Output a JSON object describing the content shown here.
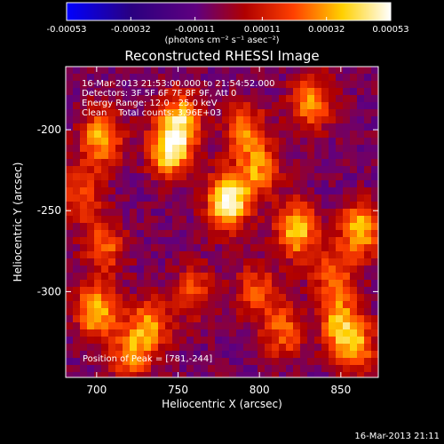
{
  "chart_data": {
    "type": "heatmap",
    "title": "Reconstructed RHESSI Image",
    "xlabel": "Heliocentric X (arcsec)",
    "ylabel": "Heliocentric Y (arcsec)",
    "xlim": [
      681,
      873
    ],
    "ylim": [
      -353,
      -161
    ],
    "x_ticks": [
      700,
      750,
      800,
      850
    ],
    "y_ticks": [
      -200,
      -250,
      -300
    ],
    "x_tick_labels": [
      "700",
      "750",
      "800",
      "850"
    ],
    "y_tick_labels": [
      "-200",
      "-250",
      "-300"
    ],
    "colorbar": {
      "min": -0.00053,
      "max": 0.00053,
      "ticks": [
        -0.00053,
        -0.00032,
        -0.00011,
        0.00011,
        0.00032,
        0.00053
      ],
      "tick_labels": [
        "-0.00053",
        "-0.00032",
        "-0.00011",
        "0.00011",
        "0.00032",
        "0.00053"
      ],
      "units_label": "(photons cm⁻² s⁻¹ asec⁻²)",
      "colors": [
        "#0000ff",
        "#2a0080",
        "#600080",
        "#b00000",
        "#ff4000",
        "#ffd000",
        "#ffffff"
      ]
    },
    "annotations": [
      "16-Mar-2013 21:53:00.000 to 21:54:52.000",
      "Detectors: 3F 5F 6F 7F 8F 9F, Att 0",
      "Energy Range: 12.0 - 25.0 keV",
      "Clean    Total counts: 3.96E+03"
    ],
    "peak": {
      "label": "Position of Peak = [781,-244]",
      "x": 781,
      "y": -244
    },
    "sources": [
      {
        "x": 781,
        "y": -244,
        "value": 0.00053
      },
      {
        "x": 745,
        "y": -212,
        "value": 0.00046
      },
      {
        "x": 752,
        "y": -193,
        "value": 0.0003
      },
      {
        "x": 703,
        "y": -205,
        "value": 0.00034
      },
      {
        "x": 700,
        "y": -312,
        "value": 0.00036
      },
      {
        "x": 732,
        "y": -322,
        "value": 0.00028
      },
      {
        "x": 823,
        "y": -262,
        "value": 0.00038
      },
      {
        "x": 862,
        "y": -262,
        "value": 0.00036
      },
      {
        "x": 850,
        "y": -320,
        "value": 0.0003
      },
      {
        "x": 832,
        "y": -183,
        "value": 0.00027
      },
      {
        "x": 800,
        "y": -225,
        "value": 0.00024
      },
      {
        "x": 791,
        "y": -200,
        "value": 0.00022
      },
      {
        "x": 845,
        "y": -290,
        "value": 0.0002
      },
      {
        "x": 860,
        "y": -335,
        "value": 0.00022
      },
      {
        "x": 705,
        "y": -272,
        "value": 0.0002
      },
      {
        "x": 815,
        "y": -325,
        "value": 0.0002
      },
      {
        "x": 760,
        "y": -300,
        "value": 0.00016
      },
      {
        "x": 690,
        "y": -240,
        "value": 0.00018
      },
      {
        "x": 798,
        "y": -300,
        "value": 0.00018
      },
      {
        "x": 720,
        "y": -340,
        "value": 0.0002
      }
    ]
  },
  "timestamp": "16-Mar-2013 21:11"
}
